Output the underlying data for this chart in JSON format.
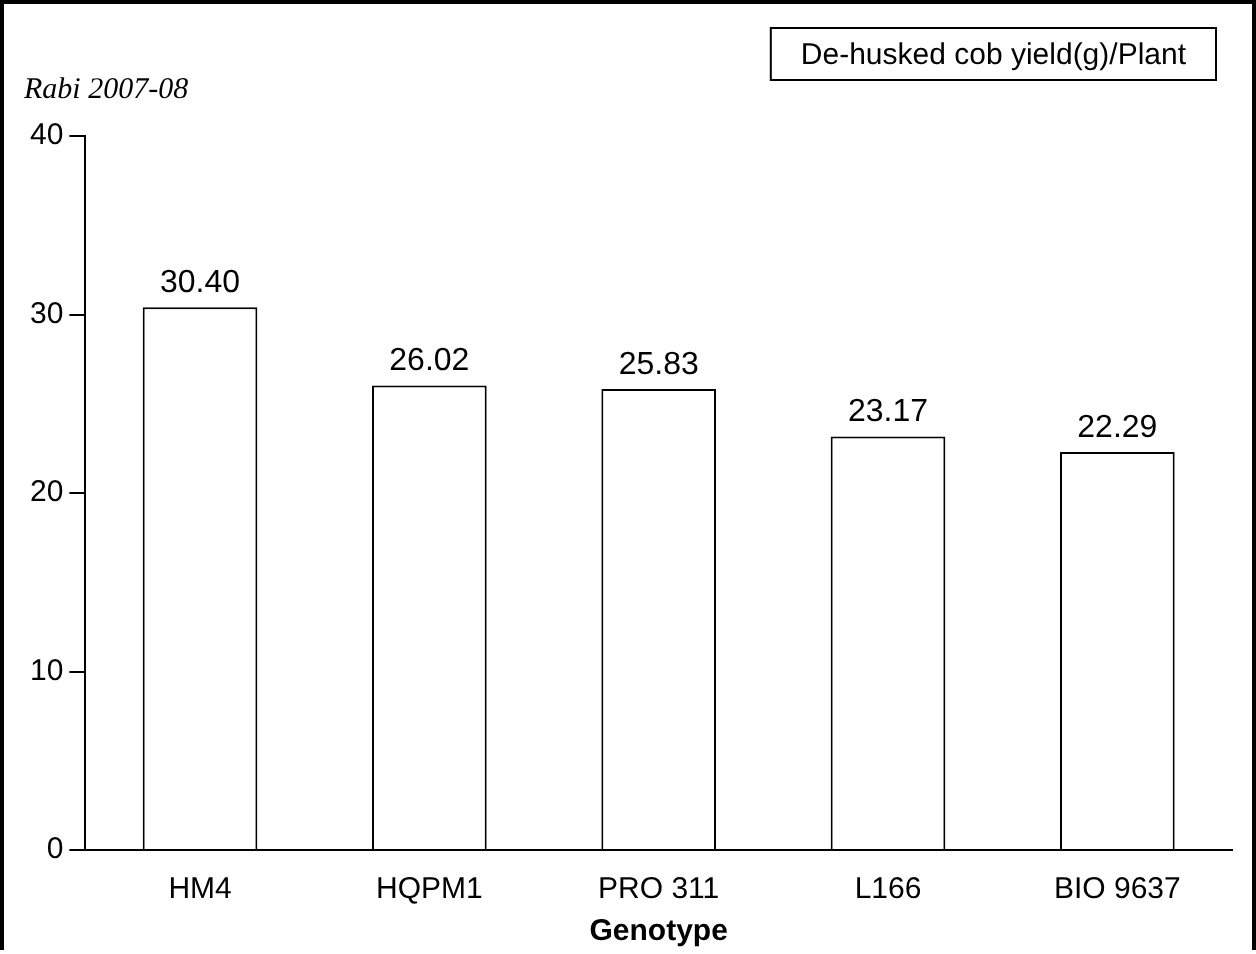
{
  "chart_data": {
    "type": "bar",
    "title": "Rabi 2007-08",
    "xlabel": "Genotype",
    "categories": [
      "HM4",
      "HQPM1",
      "PRO 311",
      "L166",
      "BIO 9637"
    ],
    "series": [
      {
        "name": "De-husked cob yield(g)/Plant",
        "color": "#ffffff",
        "values": [
          30.4,
          26.02,
          25.83,
          23.17,
          22.29
        ],
        "value_labels": [
          "30.40",
          "26.02",
          "25.83",
          "23.17",
          "22.29"
        ]
      }
    ],
    "ylim": [
      0,
      40
    ],
    "yticks": [
      0,
      10,
      20,
      30,
      40
    ],
    "legend": "top right",
    "grid": false
  }
}
